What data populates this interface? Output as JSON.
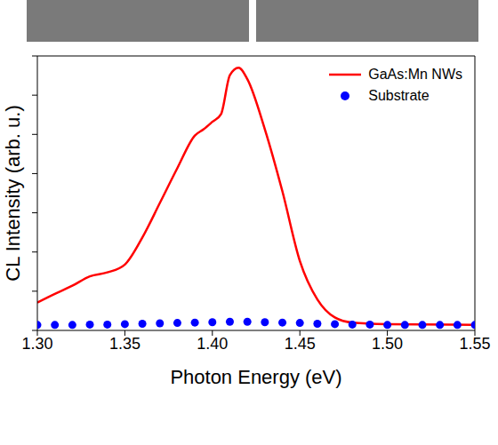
{
  "chart_data": {
    "type": "line",
    "x_label": "Photon Energy (eV)",
    "y_label": "CL Intensity (arb. u.)",
    "xlim": [
      1.3,
      1.55
    ],
    "xticks": [
      {
        "value": 1.3,
        "label": "1.30"
      },
      {
        "value": 1.35,
        "label": "1.35"
      },
      {
        "value": 1.4,
        "label": "1.40"
      },
      {
        "value": 1.45,
        "label": "1.45"
      },
      {
        "value": 1.5,
        "label": "1.50"
      },
      {
        "value": 1.55,
        "label": "1.55"
      }
    ],
    "ylim": [
      0,
      7
    ],
    "yticks": [
      0,
      1,
      2,
      3,
      4,
      5,
      6,
      7
    ],
    "tick_labels": "x",
    "legend": "upper right",
    "series": [
      {
        "name": "GaAs:Mn NWs",
        "color": "#ff0000",
        "marker": "none",
        "line_style": "solid",
        "x": [
          1.3,
          1.31,
          1.32,
          1.33,
          1.34,
          1.35,
          1.36,
          1.37,
          1.38,
          1.39,
          1.395,
          1.4,
          1.405,
          1.41,
          1.415,
          1.42,
          1.43,
          1.44,
          1.45,
          1.46,
          1.47,
          1.48,
          1.5,
          1.55
        ],
        "values": [
          0.71,
          0.93,
          1.14,
          1.38,
          1.48,
          1.68,
          2.37,
          3.25,
          4.14,
          4.97,
          5.13,
          5.32,
          5.52,
          6.51,
          6.7,
          6.41,
          5.13,
          3.55,
          1.77,
          0.79,
          0.33,
          0.2,
          0.16,
          0.14
        ]
      },
      {
        "name": "Substrate",
        "color": "#0000ff",
        "marker": "circle",
        "line_style": "none",
        "x": [
          1.3,
          1.31,
          1.32,
          1.33,
          1.34,
          1.35,
          1.36,
          1.37,
          1.38,
          1.39,
          1.4,
          1.41,
          1.42,
          1.43,
          1.44,
          1.45,
          1.46,
          1.47,
          1.48,
          1.49,
          1.5,
          1.51,
          1.52,
          1.53,
          1.54,
          1.55
        ],
        "values": [
          0.14,
          0.14,
          0.14,
          0.15,
          0.15,
          0.16,
          0.17,
          0.18,
          0.19,
          0.2,
          0.21,
          0.22,
          0.22,
          0.21,
          0.2,
          0.19,
          0.17,
          0.16,
          0.15,
          0.15,
          0.14,
          0.14,
          0.14,
          0.14,
          0.14,
          0.14
        ]
      }
    ]
  }
}
